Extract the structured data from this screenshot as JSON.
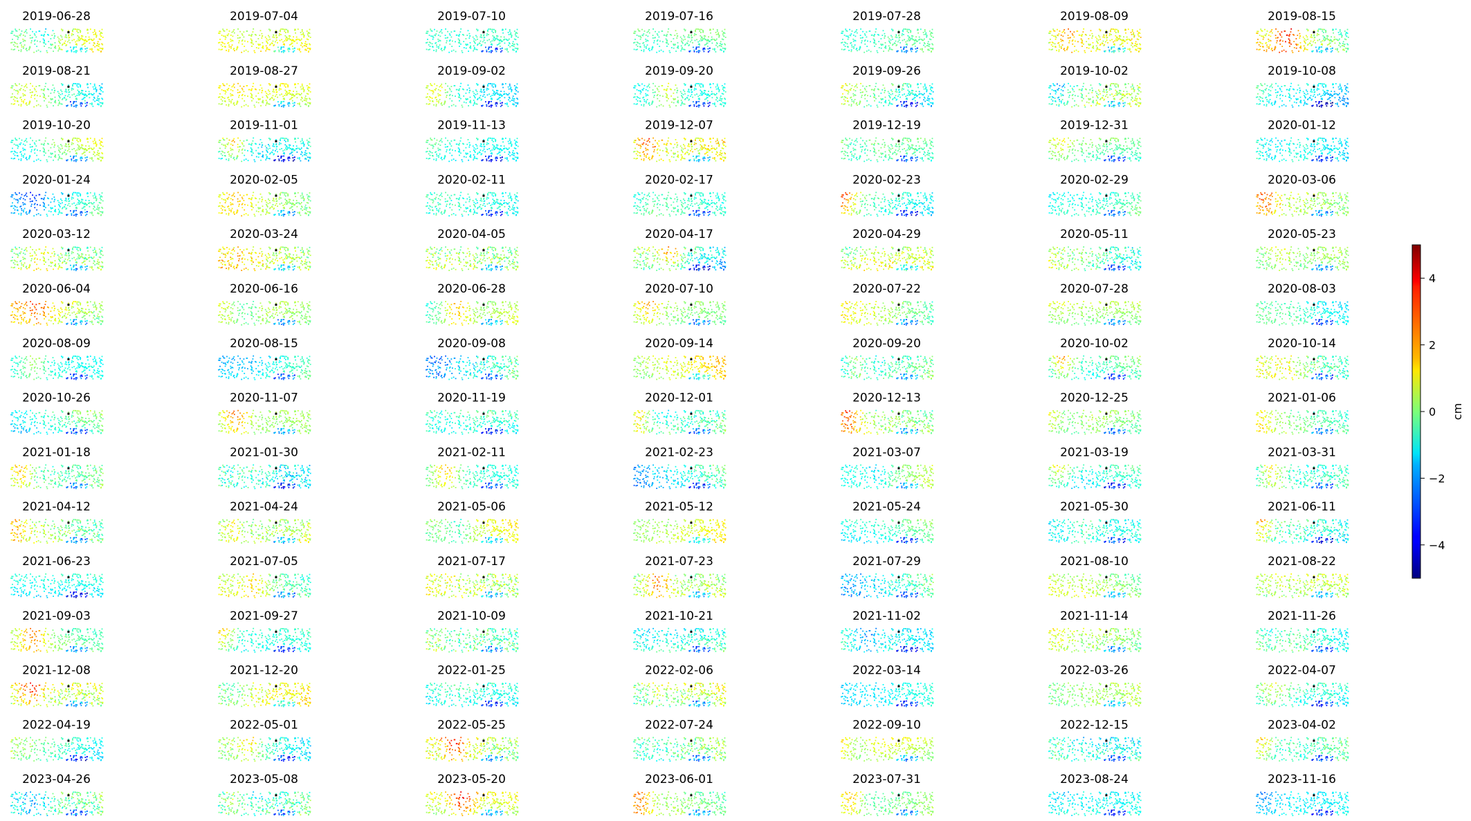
{
  "chart_data": {
    "type": "scatter",
    "panels": [
      "2019-06-28",
      "2019-07-04",
      "2019-07-10",
      "2019-07-16",
      "2019-07-28",
      "2019-08-09",
      "2019-08-15",
      "2019-08-21",
      "2019-08-27",
      "2019-09-02",
      "2019-09-20",
      "2019-09-26",
      "2019-10-02",
      "2019-10-08",
      "2019-10-20",
      "2019-11-01",
      "2019-11-13",
      "2019-12-07",
      "2019-12-19",
      "2019-12-31",
      "2020-01-12",
      "2020-01-24",
      "2020-02-05",
      "2020-02-11",
      "2020-02-17",
      "2020-02-23",
      "2020-02-29",
      "2020-03-06",
      "2020-03-12",
      "2020-03-24",
      "2020-04-05",
      "2020-04-17",
      "2020-04-29",
      "2020-05-11",
      "2020-05-23",
      "2020-06-04",
      "2020-06-16",
      "2020-06-28",
      "2020-07-10",
      "2020-07-22",
      "2020-07-28",
      "2020-08-03",
      "2020-08-09",
      "2020-08-15",
      "2020-09-08",
      "2020-09-14",
      "2020-09-20",
      "2020-10-02",
      "2020-10-14",
      "2020-10-26",
      "2020-11-07",
      "2020-11-19",
      "2020-12-01",
      "2020-12-13",
      "2020-12-25",
      "2021-01-06",
      "2021-01-18",
      "2021-01-30",
      "2021-02-11",
      "2021-02-23",
      "2021-03-07",
      "2021-03-19",
      "2021-03-31",
      "2021-04-12",
      "2021-04-24",
      "2021-05-06",
      "2021-05-12",
      "2021-05-24",
      "2021-05-30",
      "2021-06-11",
      "2021-06-23",
      "2021-07-05",
      "2021-07-17",
      "2021-07-23",
      "2021-07-29",
      "2021-08-10",
      "2021-08-22",
      "2021-09-03",
      "2021-09-27",
      "2021-10-09",
      "2021-10-21",
      "2021-11-02",
      "2021-11-14",
      "2021-11-26",
      "2021-12-08",
      "2021-12-20",
      "2022-01-25",
      "2022-02-06",
      "2022-03-14",
      "2022-03-26",
      "2022-04-07",
      "2022-04-19",
      "2022-05-01",
      "2022-05-25",
      "2022-07-24",
      "2022-09-10",
      "2022-12-15",
      "2023-04-02",
      "2023-04-26",
      "2023-05-08",
      "2023-05-20",
      "2023-06-01",
      "2023-07-31",
      "2023-08-24",
      "2023-11-16"
    ],
    "colorbar": {
      "label": "cm",
      "min": -5,
      "max": 5,
      "ticks": [
        4,
        2,
        0,
        -2,
        -4
      ],
      "tick_labels": [
        "4",
        "2",
        "0",
        "−2",
        "−4"
      ],
      "colormap": "jet"
    },
    "reference_point": "black-square"
  }
}
